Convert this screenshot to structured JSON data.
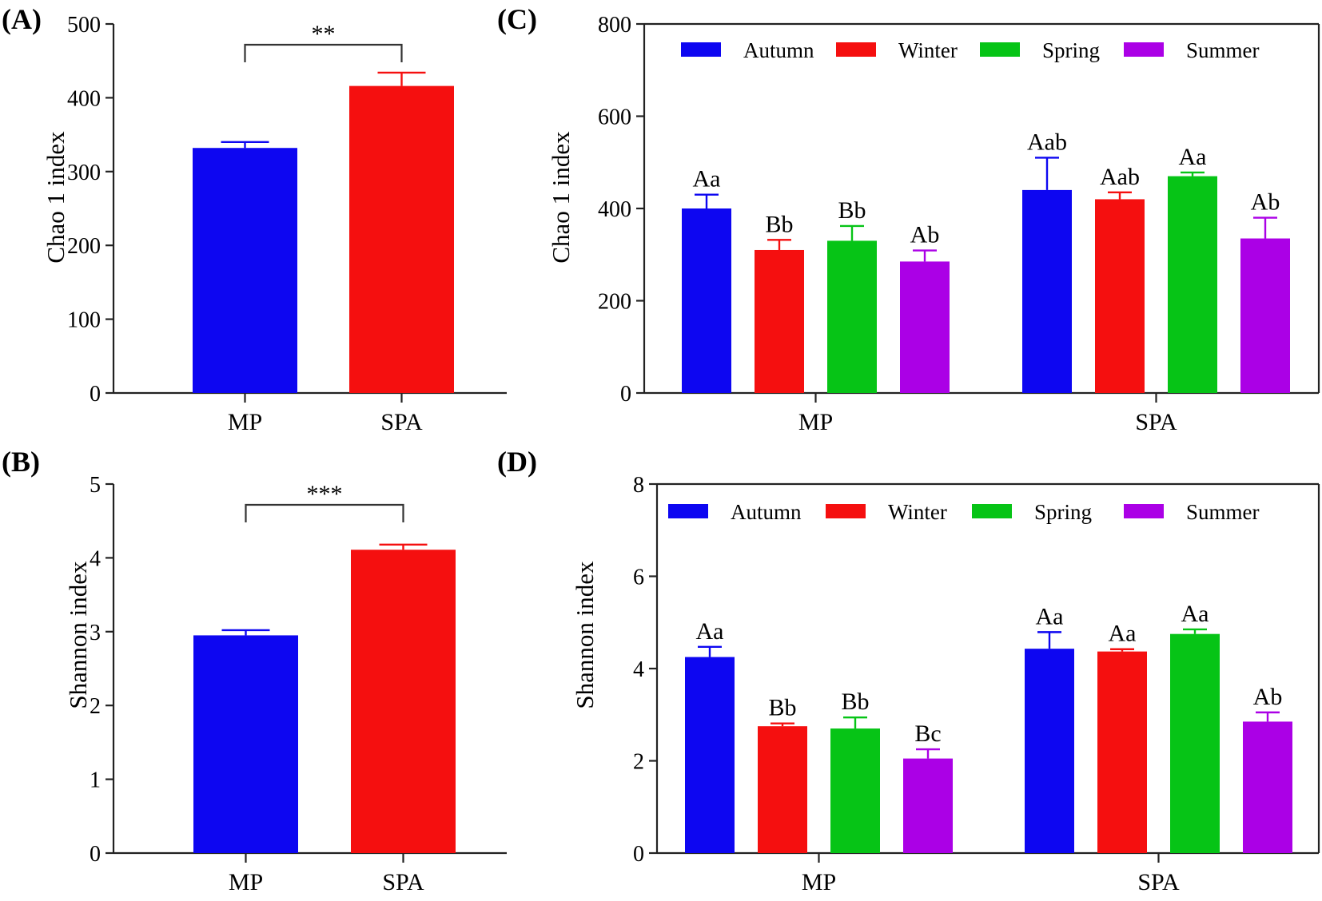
{
  "colors": {
    "Autumn": "#0d06f1",
    "Winter": "#f50f0f",
    "Spring": "#06c416",
    "Summer": "#ab00e6",
    "MP": "#0d06f1",
    "SPA": "#f50f0f",
    "error_bar": "#ff0000"
  },
  "chart_data": [
    {
      "panel": "(A)",
      "type": "bar",
      "ylabel": "Chao 1 index",
      "ylim": [
        0,
        500
      ],
      "yticks": [
        0,
        100,
        200,
        300,
        400,
        500
      ],
      "categories": [
        "MP",
        "SPA"
      ],
      "values": [
        332,
        416
      ],
      "errors": [
        8,
        18
      ],
      "significance": "**"
    },
    {
      "panel": "(B)",
      "type": "bar",
      "ylabel": "Shannon index",
      "ylim": [
        0,
        5
      ],
      "yticks": [
        0,
        1,
        2,
        3,
        4,
        5
      ],
      "categories": [
        "MP",
        "SPA"
      ],
      "values": [
        2.95,
        4.11
      ],
      "errors": [
        0.07,
        0.07
      ],
      "significance": "***"
    },
    {
      "panel": "(C)",
      "type": "bar",
      "ylabel": "Chao 1 index",
      "ylim": [
        0,
        800
      ],
      "yticks": [
        0,
        200,
        400,
        600,
        800
      ],
      "legend_position": "top",
      "categories": [
        "MP",
        "SPA"
      ],
      "series": [
        {
          "name": "Autumn",
          "values": [
            400,
            440
          ],
          "errors": [
            30,
            70
          ],
          "letters": [
            "Aa",
            "Aab"
          ]
        },
        {
          "name": "Winter",
          "values": [
            310,
            420
          ],
          "errors": [
            22,
            15
          ],
          "letters": [
            "Bb",
            "Aab"
          ]
        },
        {
          "name": "Spring",
          "values": [
            330,
            470
          ],
          "errors": [
            32,
            8
          ],
          "letters": [
            "Bb",
            "Aa"
          ]
        },
        {
          "name": "Summer",
          "values": [
            285,
            335
          ],
          "errors": [
            24,
            45
          ],
          "letters": [
            "Ab",
            "Ab"
          ]
        }
      ]
    },
    {
      "panel": "(D)",
      "type": "bar",
      "ylabel": "Shannon index",
      "ylim": [
        0,
        8
      ],
      "yticks": [
        0,
        2,
        4,
        6,
        8
      ],
      "legend_position": "top",
      "categories": [
        "MP",
        "SPA"
      ],
      "series": [
        {
          "name": "Autumn",
          "values": [
            4.25,
            4.43
          ],
          "errors": [
            0.22,
            0.36
          ],
          "letters": [
            "Aa",
            "Aa"
          ]
        },
        {
          "name": "Winter",
          "values": [
            2.75,
            4.37
          ],
          "errors": [
            0.06,
            0.05
          ],
          "letters": [
            "Bb",
            "Aa"
          ]
        },
        {
          "name": "Spring",
          "values": [
            2.7,
            4.75
          ],
          "errors": [
            0.24,
            0.1
          ],
          "letters": [
            "Bb",
            "Aa"
          ]
        },
        {
          "name": "Summer",
          "values": [
            2.05,
            2.85
          ],
          "errors": [
            0.2,
            0.2
          ],
          "letters": [
            "Bc",
            "Ab"
          ]
        }
      ]
    }
  ]
}
